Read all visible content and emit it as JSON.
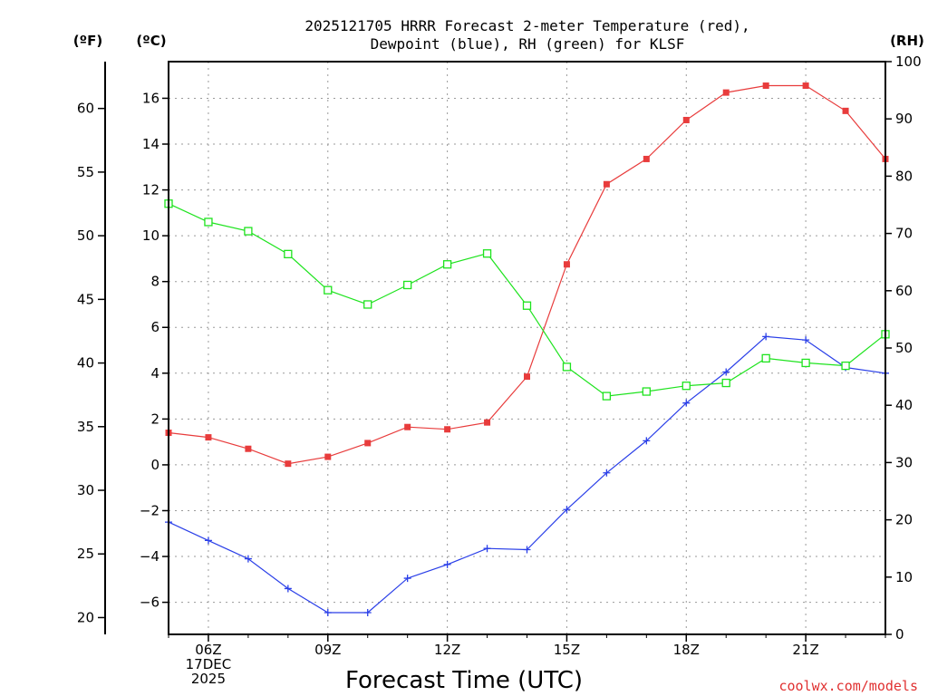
{
  "chart_data": {
    "type": "line",
    "title_line1": "2025121705 HRRR Forecast 2-meter Temperature (red),",
    "title_line2": "Dewpoint (blue), RH (green) for KLSF",
    "xlabel": "Forecast Time (UTC)",
    "credit": "coolwx.com/models",
    "units": {
      "fahrenheit": "(ºF)",
      "celsius": "(ºC)",
      "rh": "(RH)"
    },
    "x_hours": [
      5,
      6,
      7,
      8,
      9,
      10,
      11,
      12,
      13,
      14,
      15,
      16,
      17,
      18,
      19,
      20,
      21,
      22,
      23
    ],
    "x_range": [
      5,
      23
    ],
    "x_tick_labels": [
      {
        "hour": 6,
        "lines": [
          "06Z",
          "17DEC",
          "2025"
        ]
      },
      {
        "hour": 9,
        "lines": [
          "09Z"
        ]
      },
      {
        "hour": 12,
        "lines": [
          "12Z"
        ]
      },
      {
        "hour": 15,
        "lines": [
          "15Z"
        ]
      },
      {
        "hour": 18,
        "lines": [
          "18Z"
        ]
      },
      {
        "hour": 21,
        "lines": [
          "21Z"
        ]
      }
    ],
    "celsius_range": [
      -7.4,
      17.6
    ],
    "celsius_ticks": [
      -6,
      -4,
      -2,
      0,
      2,
      4,
      6,
      8,
      10,
      12,
      14,
      16
    ],
    "celsius_tick_labels": [
      "−6",
      "−4",
      "−2",
      "0",
      "2",
      "4",
      "6",
      "8",
      "10",
      "12",
      "14",
      "16"
    ],
    "fahrenheit_ticks": [
      20,
      25,
      30,
      35,
      40,
      45,
      50,
      55,
      60
    ],
    "fahrenheit_tick_labels": [
      "20",
      "25",
      "30",
      "35",
      "40",
      "45",
      "50",
      "55",
      "60"
    ],
    "rh_range": [
      0,
      100
    ],
    "rh_ticks": [
      0,
      10,
      20,
      30,
      40,
      50,
      60,
      70,
      80,
      90,
      100
    ],
    "rh_tick_labels": [
      "0",
      "10",
      "20",
      "30",
      "40",
      "50",
      "60",
      "70",
      "80",
      "90",
      "100"
    ],
    "series": [
      {
        "name": "2-meter Temperature",
        "axis": "celsius",
        "color": "#e83c3c",
        "marker": "filled-square",
        "values": [
          1.4,
          1.2,
          0.7,
          0.05,
          0.35,
          0.95,
          1.65,
          1.55,
          1.85,
          3.85,
          8.75,
          12.25,
          13.35,
          15.05,
          16.25,
          16.55,
          16.55,
          15.45,
          13.35
        ]
      },
      {
        "name": "Dewpoint",
        "axis": "celsius",
        "color": "#2a3fe8",
        "marker": "plus",
        "values": [
          -2.5,
          -3.3,
          -4.1,
          -5.4,
          -6.45,
          -6.45,
          -4.95,
          -4.35,
          -3.65,
          -3.7,
          -1.95,
          -0.35,
          1.05,
          2.7,
          4.05,
          5.6,
          5.45,
          4.25,
          4.0
        ]
      },
      {
        "name": "RH",
        "axis": "rh",
        "color": "#1ee31e",
        "marker": "open-square",
        "values": [
          75.2,
          72.0,
          70.4,
          66.4,
          60.1,
          57.6,
          61.0,
          64.6,
          66.5,
          57.4,
          46.7,
          41.6,
          42.4,
          43.4,
          43.9,
          48.2,
          47.4,
          46.9,
          52.4
        ]
      }
    ]
  }
}
